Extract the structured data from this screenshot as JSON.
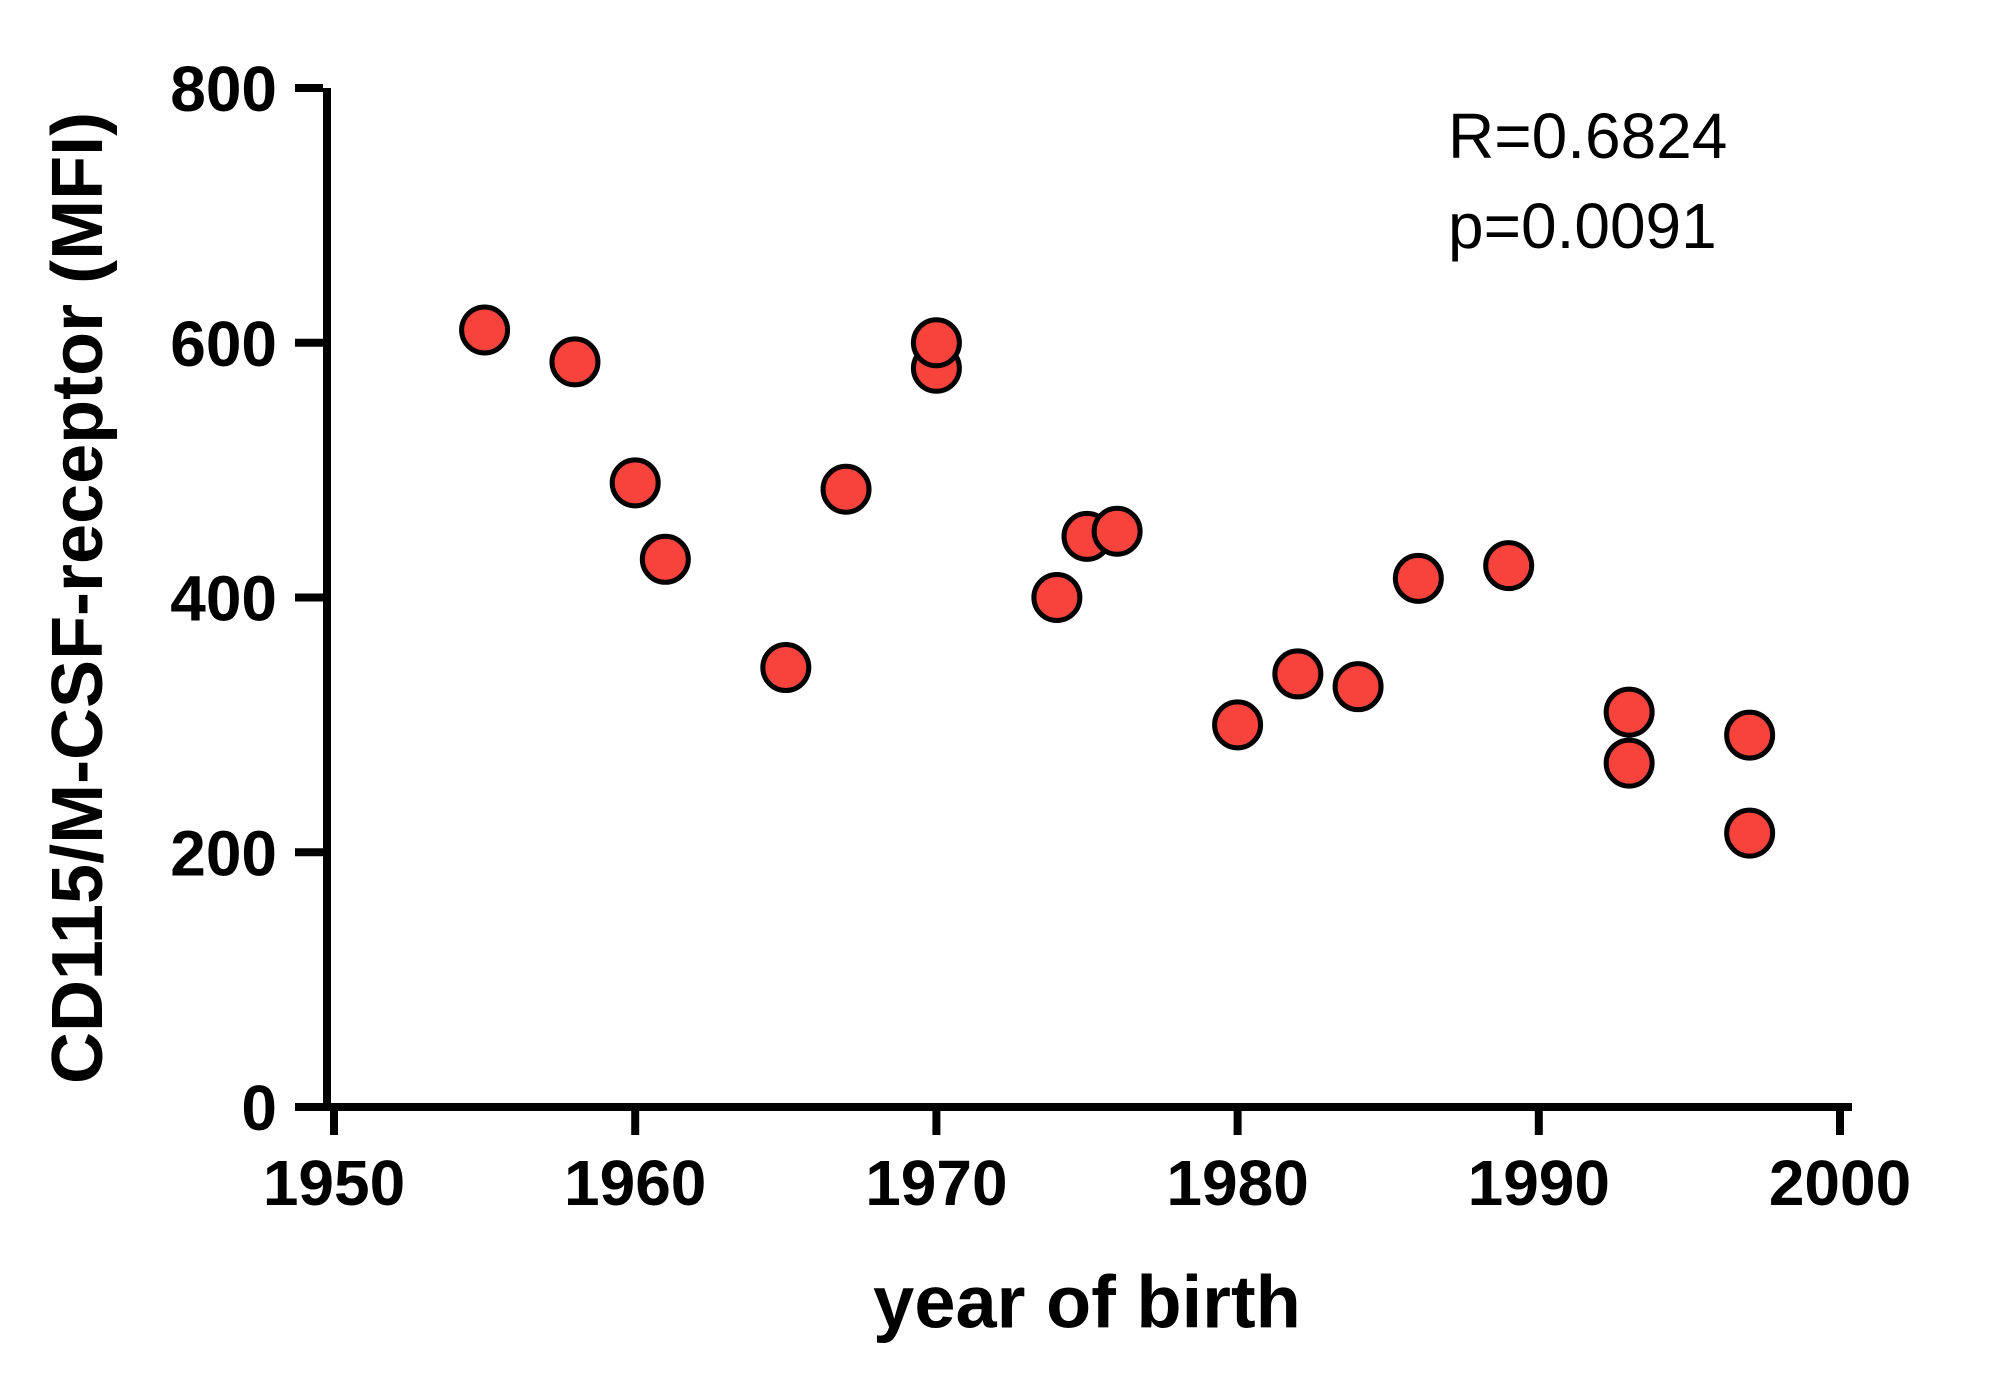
{
  "chart_data": {
    "type": "scatter",
    "title": "",
    "xlabel": "year of birth",
    "ylabel": "CD115/M-CSF-receptor (MFI)",
    "xlim": [
      1950,
      2000
    ],
    "ylim": [
      0,
      800
    ],
    "x_ticks": [
      1950,
      1960,
      1970,
      1980,
      1990,
      2000
    ],
    "y_ticks": [
      0,
      200,
      400,
      600,
      800
    ],
    "grid": false,
    "legend": false,
    "annotation": [
      "R=0.6824",
      "p=0.0091"
    ],
    "marker": {
      "shape": "circle",
      "fill_color": "#f8423c",
      "stroke_color": "#000000"
    },
    "axis_color": "#000000",
    "points": [
      {
        "x": 1955,
        "y": 610
      },
      {
        "x": 1958,
        "y": 585
      },
      {
        "x": 1960,
        "y": 490
      },
      {
        "x": 1961,
        "y": 430
      },
      {
        "x": 1965,
        "y": 345
      },
      {
        "x": 1967,
        "y": 485
      },
      {
        "x": 1970,
        "y": 580
      },
      {
        "x": 1970,
        "y": 600
      },
      {
        "x": 1974,
        "y": 400
      },
      {
        "x": 1975,
        "y": 448
      },
      {
        "x": 1976,
        "y": 452
      },
      {
        "x": 1980,
        "y": 300
      },
      {
        "x": 1982,
        "y": 340
      },
      {
        "x": 1984,
        "y": 330
      },
      {
        "x": 1986,
        "y": 415
      },
      {
        "x": 1989,
        "y": 425
      },
      {
        "x": 1993,
        "y": 310
      },
      {
        "x": 1993,
        "y": 270
      },
      {
        "x": 1997,
        "y": 292
      },
      {
        "x": 1997,
        "y": 215
      }
    ]
  }
}
